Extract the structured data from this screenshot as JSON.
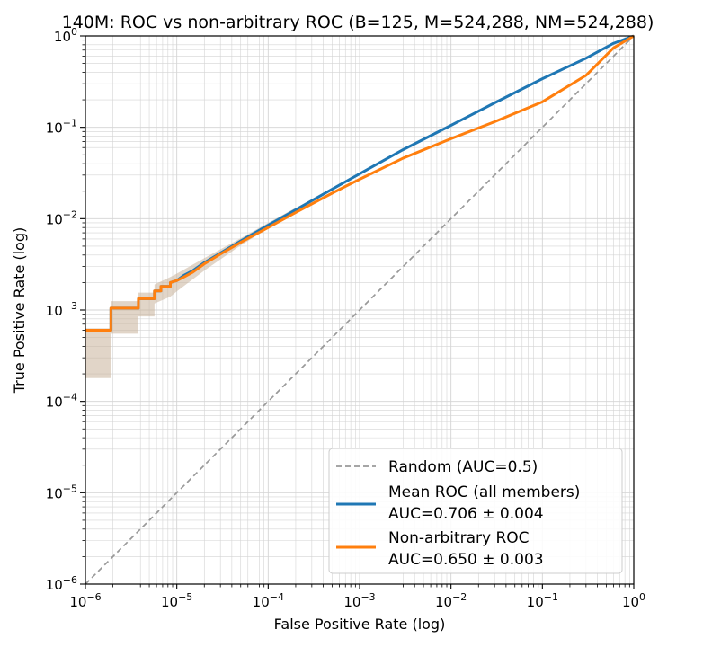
{
  "chart_data": {
    "type": "line",
    "title": "140M: ROC vs non-arbitrary ROC (B=125, M=524,288, NM=524,288)",
    "xlabel": "False Positive Rate (log)",
    "ylabel": "True Positive Rate (log)",
    "xscale": "log",
    "yscale": "log",
    "xlim": [
      1e-06,
      1
    ],
    "ylim": [
      1e-06,
      1
    ],
    "grid": true,
    "legend_position": "lower-right",
    "x_tick_labels": [
      "10^-6",
      "10^-5",
      "10^-4",
      "10^-3",
      "10^-2",
      "10^-1",
      "10^0"
    ],
    "y_tick_labels": [
      "10^-6",
      "10^-5",
      "10^-4",
      "10^-3",
      "10^-2",
      "10^-1",
      "10^0"
    ],
    "series": [
      {
        "name": "Random (AUC=0.5)",
        "label_lines": [
          "Random (AUC=0.5)"
        ],
        "color": "#999999",
        "style": "dashed",
        "x": [
          1e-06,
          1
        ],
        "y": [
          1e-06,
          1
        ]
      },
      {
        "name": "Mean ROC (all members)",
        "label_lines": [
          "Mean ROC (all members)",
          "AUC=0.706 ± 0.004"
        ],
        "color": "#1f77b4",
        "style": "solid",
        "x": [
          1e-06,
          1.9e-06,
          1.9e-06,
          3.8e-06,
          3.8e-06,
          5.7e-06,
          5.7e-06,
          6.7e-06,
          6.7e-06,
          8.5e-06,
          8.5e-06,
          1e-05,
          1.2e-05,
          1.5e-05,
          2e-05,
          3e-05,
          5e-05,
          0.0001,
          0.0002,
          0.0005,
          0.001,
          0.003,
          0.01,
          0.03,
          0.1,
          0.3,
          0.6,
          1
        ],
        "y": [
          0.0006,
          0.0006,
          0.00105,
          0.00105,
          0.00133,
          0.00133,
          0.00162,
          0.00162,
          0.00181,
          0.00181,
          0.002,
          0.0021,
          0.0024,
          0.0027,
          0.0033,
          0.0042,
          0.0057,
          0.0085,
          0.0125,
          0.021,
          0.031,
          0.057,
          0.105,
          0.185,
          0.34,
          0.57,
          0.83,
          1.0
        ]
      },
      {
        "name": "Non-arbitrary ROC",
        "label_lines": [
          "Non-arbitrary ROC",
          "AUC=0.650 ± 0.003"
        ],
        "color": "#ff7f0e",
        "style": "solid",
        "x": [
          1e-06,
          1.9e-06,
          1.9e-06,
          3.8e-06,
          3.8e-06,
          5.7e-06,
          5.7e-06,
          6.7e-06,
          6.7e-06,
          8.5e-06,
          8.5e-06,
          1e-05,
          1.2e-05,
          1.5e-05,
          2e-05,
          3e-05,
          5e-05,
          0.0001,
          0.0002,
          0.0005,
          0.001,
          0.003,
          0.01,
          0.03,
          0.1,
          0.3,
          0.6,
          1
        ],
        "y": [
          0.0006,
          0.0006,
          0.00105,
          0.00105,
          0.00133,
          0.00133,
          0.00162,
          0.00162,
          0.00181,
          0.00181,
          0.002,
          0.0021,
          0.0023,
          0.0026,
          0.0032,
          0.0041,
          0.0055,
          0.008,
          0.0117,
          0.019,
          0.027,
          0.046,
          0.075,
          0.115,
          0.19,
          0.37,
          0.74,
          1.0
        ]
      }
    ],
    "confidence_band": {
      "color": "#c9b39a",
      "x": [
        1e-06,
        1.9e-06,
        1.9e-06,
        3.8e-06,
        3.8e-06,
        5.7e-06,
        5.7e-06,
        8.5e-06,
        1e-05,
        2e-05,
        5e-05,
        0.0001,
        0.0002
      ],
      "upper": [
        0.00063,
        0.00063,
        0.00125,
        0.00125,
        0.00155,
        0.00155,
        0.0019,
        0.0023,
        0.0025,
        0.0037,
        0.0061,
        0.009,
        0.0132
      ],
      "lower": [
        0.00018,
        0.00018,
        0.00055,
        0.00055,
        0.00085,
        0.00085,
        0.00118,
        0.0014,
        0.0016,
        0.0027,
        0.0051,
        0.0078,
        0.0114
      ]
    }
  }
}
